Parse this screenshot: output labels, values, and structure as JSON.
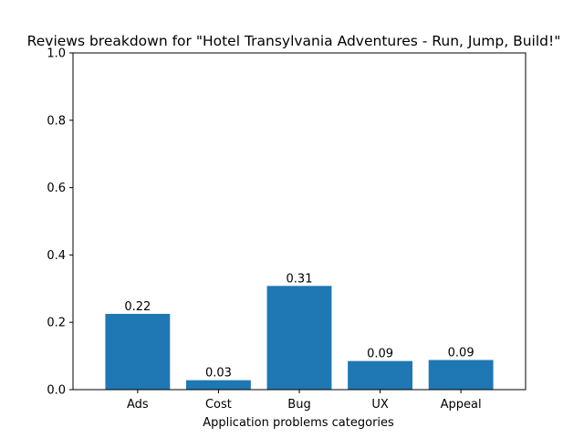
{
  "chart_data": {
    "type": "bar",
    "title": "Reviews breakdown for \"Hotel Transylvania Adventures - Run, Jump, Build!\"",
    "xlabel": "Application problems categories",
    "ylabel": "",
    "categories": [
      "Ads",
      "Cost",
      "Bug",
      "UX",
      "Appeal"
    ],
    "values": [
      0.225,
      0.028,
      0.308,
      0.085,
      0.088
    ],
    "data_labels": [
      "0.22",
      "0.03",
      "0.31",
      "0.09",
      "0.09"
    ],
    "ylim": [
      0,
      1.0
    ],
    "yticks": [
      "0.0",
      "0.2",
      "0.4",
      "0.6",
      "0.8",
      "1.0"
    ],
    "bar_color": "#1f77b4",
    "grid": false,
    "legend": "none"
  }
}
